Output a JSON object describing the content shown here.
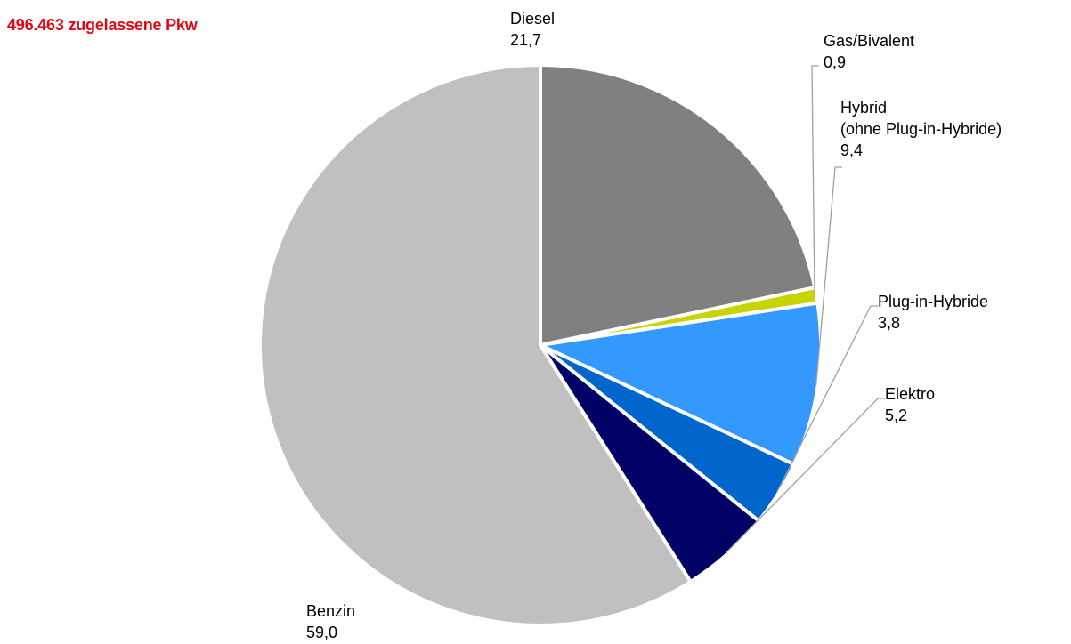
{
  "chart_data": {
    "type": "pie",
    "title": "496.463 zugelassene Pkw",
    "slices": [
      {
        "name": "Benzin",
        "value": 59.0,
        "value_label": "59,0",
        "color": "#c0c0c0",
        "label_lines": [
          "Benzin"
        ]
      },
      {
        "name": "Diesel",
        "value": 21.7,
        "value_label": "21,7",
        "color": "#808080",
        "label_lines": [
          "Diesel"
        ]
      },
      {
        "name": "Gas/Bivalent",
        "value": 0.9,
        "value_label": "0,9",
        "color": "#c8d400",
        "label_lines": [
          "Gas/Bivalent"
        ]
      },
      {
        "name": "Hybrid (ohne Plug-in-Hybride)",
        "value": 9.4,
        "value_label": "9,4",
        "color": "#3399ff",
        "label_lines": [
          "Hybrid",
          "(ohne Plug-in-Hybride)"
        ]
      },
      {
        "name": "Plug-in-Hybride",
        "value": 3.8,
        "value_label": "3,8",
        "color": "#0066cc",
        "label_lines": [
          "Plug-in-Hybride"
        ]
      },
      {
        "name": "Elektro",
        "value": 5.2,
        "value_label": "5,2",
        "color": "#000066",
        "label_lines": [
          "Elektro"
        ]
      }
    ],
    "legend": "none",
    "leader_line_color": "#a0a0a0",
    "slice_border_color": "#ffffff"
  }
}
